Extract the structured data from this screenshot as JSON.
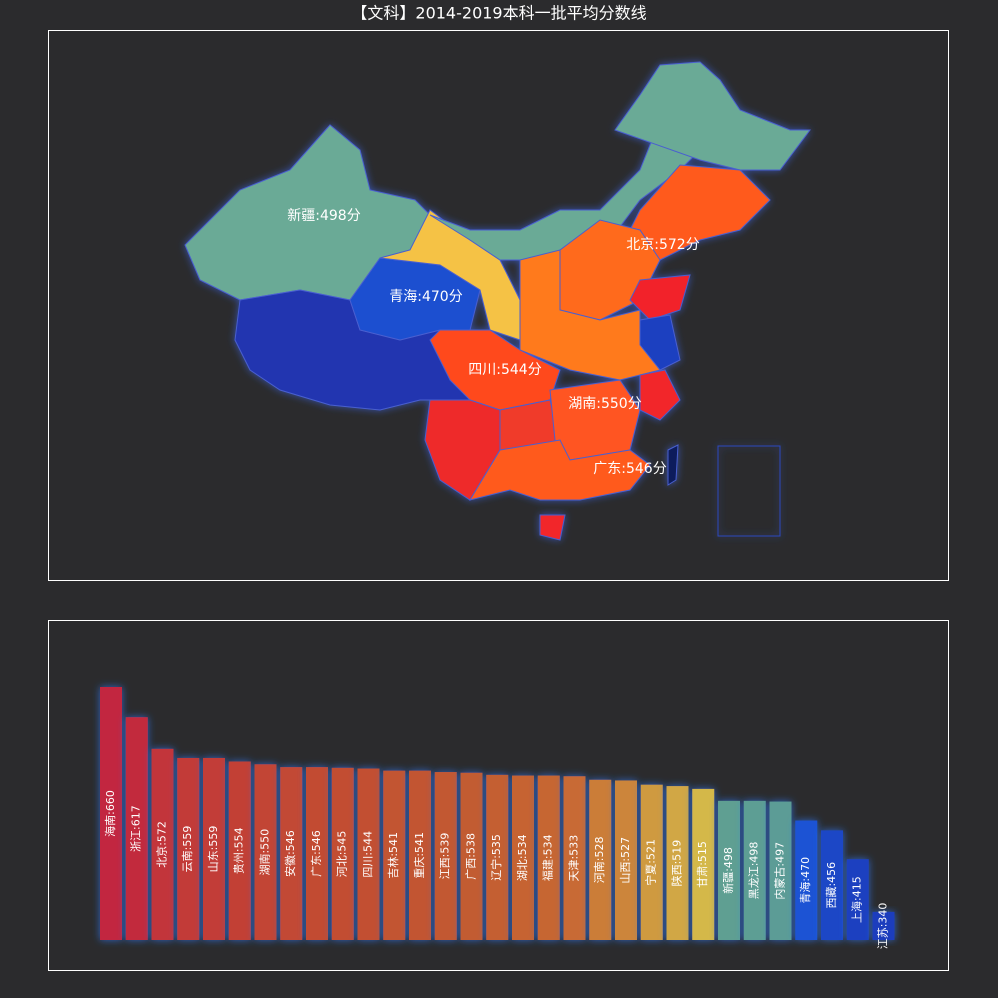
{
  "chart_data": [
    {
      "type": "map",
      "title": "【文科】2014-2019本科一批平均分数线",
      "labels": [
        "新疆:498分",
        "青海:470分",
        "北京:572分",
        "四川:544分",
        "湖南:550分",
        "广东:546分"
      ]
    },
    {
      "type": "bar",
      "values": [
        660,
        617,
        572,
        559,
        559,
        554,
        550,
        546,
        546,
        545,
        544,
        541,
        541,
        539,
        538,
        535,
        534,
        534,
        533,
        528,
        527,
        521,
        519,
        515,
        498,
        498,
        497,
        470,
        456,
        415,
        340
      ],
      "value_labels": [
        "海南:660",
        "浙江:617",
        "北京:572",
        "云南:559",
        "山东:559",
        "贵州:554",
        "湖南:550",
        "安徽:546",
        "广东:546",
        "河北:545",
        "四川:544",
        "吉林:541",
        "重庆:541",
        "江西:539",
        "广西:538",
        "辽宁:535",
        "湖北:534",
        "福建:534",
        "天津:533",
        "河南:528",
        "山西:527",
        "宁夏:521",
        "陕西:519",
        "甘肃:515",
        "新疆:498",
        "黑龙江:498",
        "内蒙古:497",
        "青海:470",
        "西藏:456",
        "上海:415",
        "江苏:340"
      ],
      "colors": [
        "#c2283f",
        "#c22b3d",
        "#c2343a",
        "#c23a38",
        "#c23c37",
        "#c24036",
        "#c24535",
        "#c24a34",
        "#c24b33",
        "#c24e33",
        "#c25032",
        "#c25432",
        "#c25532",
        "#c25832",
        "#c25b32",
        "#c45f32",
        "#c66333",
        "#c66633",
        "#c86a34",
        "#cb7d38",
        "#cc853a",
        "#cf9a40",
        "#d1a744",
        "#d4b84a",
        "#5f9f92",
        "#5d9e94",
        "#5b9c96",
        "#1d53d4",
        "#1e46c6",
        "#1f3fc0",
        "#1f3cbd"
      ],
      "ylim": [
        300,
        660
      ]
    }
  ]
}
